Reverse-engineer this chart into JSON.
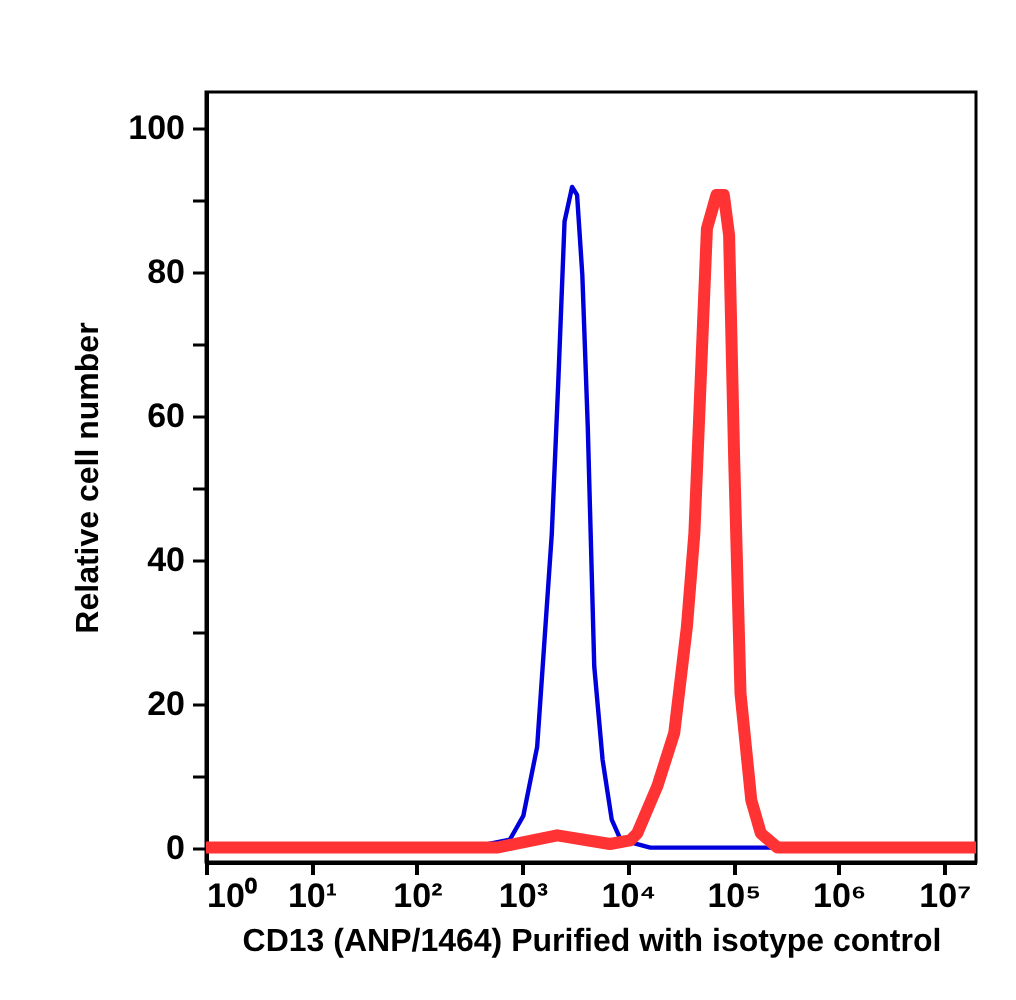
{
  "chart_data": {
    "type": "line",
    "xlabel": "CD13 (ANP/1464) Purified with isotype control",
    "ylabel": "Relative cell number",
    "log": "x",
    "grid": false,
    "marker": "none",
    "xlim": [
      1,
      20000000
    ],
    "ylim": [
      -2,
      105
    ],
    "xticks": [
      {
        "value": 1,
        "label": "10⁰"
      },
      {
        "value": 10,
        "label": "10¹"
      },
      {
        "value": 100,
        "label": "10²"
      },
      {
        "value": 1000,
        "label": "10³"
      },
      {
        "value": 10000,
        "label": "10⁴"
      },
      {
        "value": 100000,
        "label": "10⁵"
      },
      {
        "value": 1000000,
        "label": "10⁶"
      },
      {
        "value": 10000000,
        "label": "10⁷"
      }
    ],
    "yticks": [
      0,
      {
        "value": 10,
        "label": null
      },
      20,
      {
        "value": 30,
        "label": null
      },
      40,
      {
        "value": 50,
        "label": null
      },
      60,
      {
        "value": 70,
        "label": null
      },
      80,
      {
        "value": 90,
        "label": null
      },
      100
    ],
    "series": [
      {
        "color": "#0000dd",
        "x": [
          1,
          320,
          760,
          1020,
          1380,
          1620,
          1900,
          2190,
          2510,
          2960,
          3300,
          3700,
          4170,
          4800,
          5760,
          7030,
          8530,
          16300,
          20000000
        ],
        "values": [
          0,
          0,
          1.1,
          4.4,
          14,
          28.8,
          43.6,
          64.8,
          87,
          91.8,
          90.7,
          79.6,
          58.4,
          25.2,
          12.2,
          3.9,
          1.1,
          0,
          0
        ]
      },
      {
        "color": "#ff3333",
        "x": [
          1,
          575,
          2140,
          6760,
          10500,
          12300,
          19100,
          27500,
          36300,
          42700,
          49000,
          56200,
          69200,
          81300,
          91200,
          102000,
          117000,
          148000,
          182000,
          263000,
          20000000
        ],
        "values": [
          0,
          0,
          1.7,
          0.5,
          1,
          2,
          8.6,
          15.9,
          30.7,
          43.6,
          64.8,
          86,
          90.7,
          90.7,
          85.1,
          53.7,
          21.4,
          6.6,
          2,
          0,
          0
        ]
      }
    ]
  }
}
